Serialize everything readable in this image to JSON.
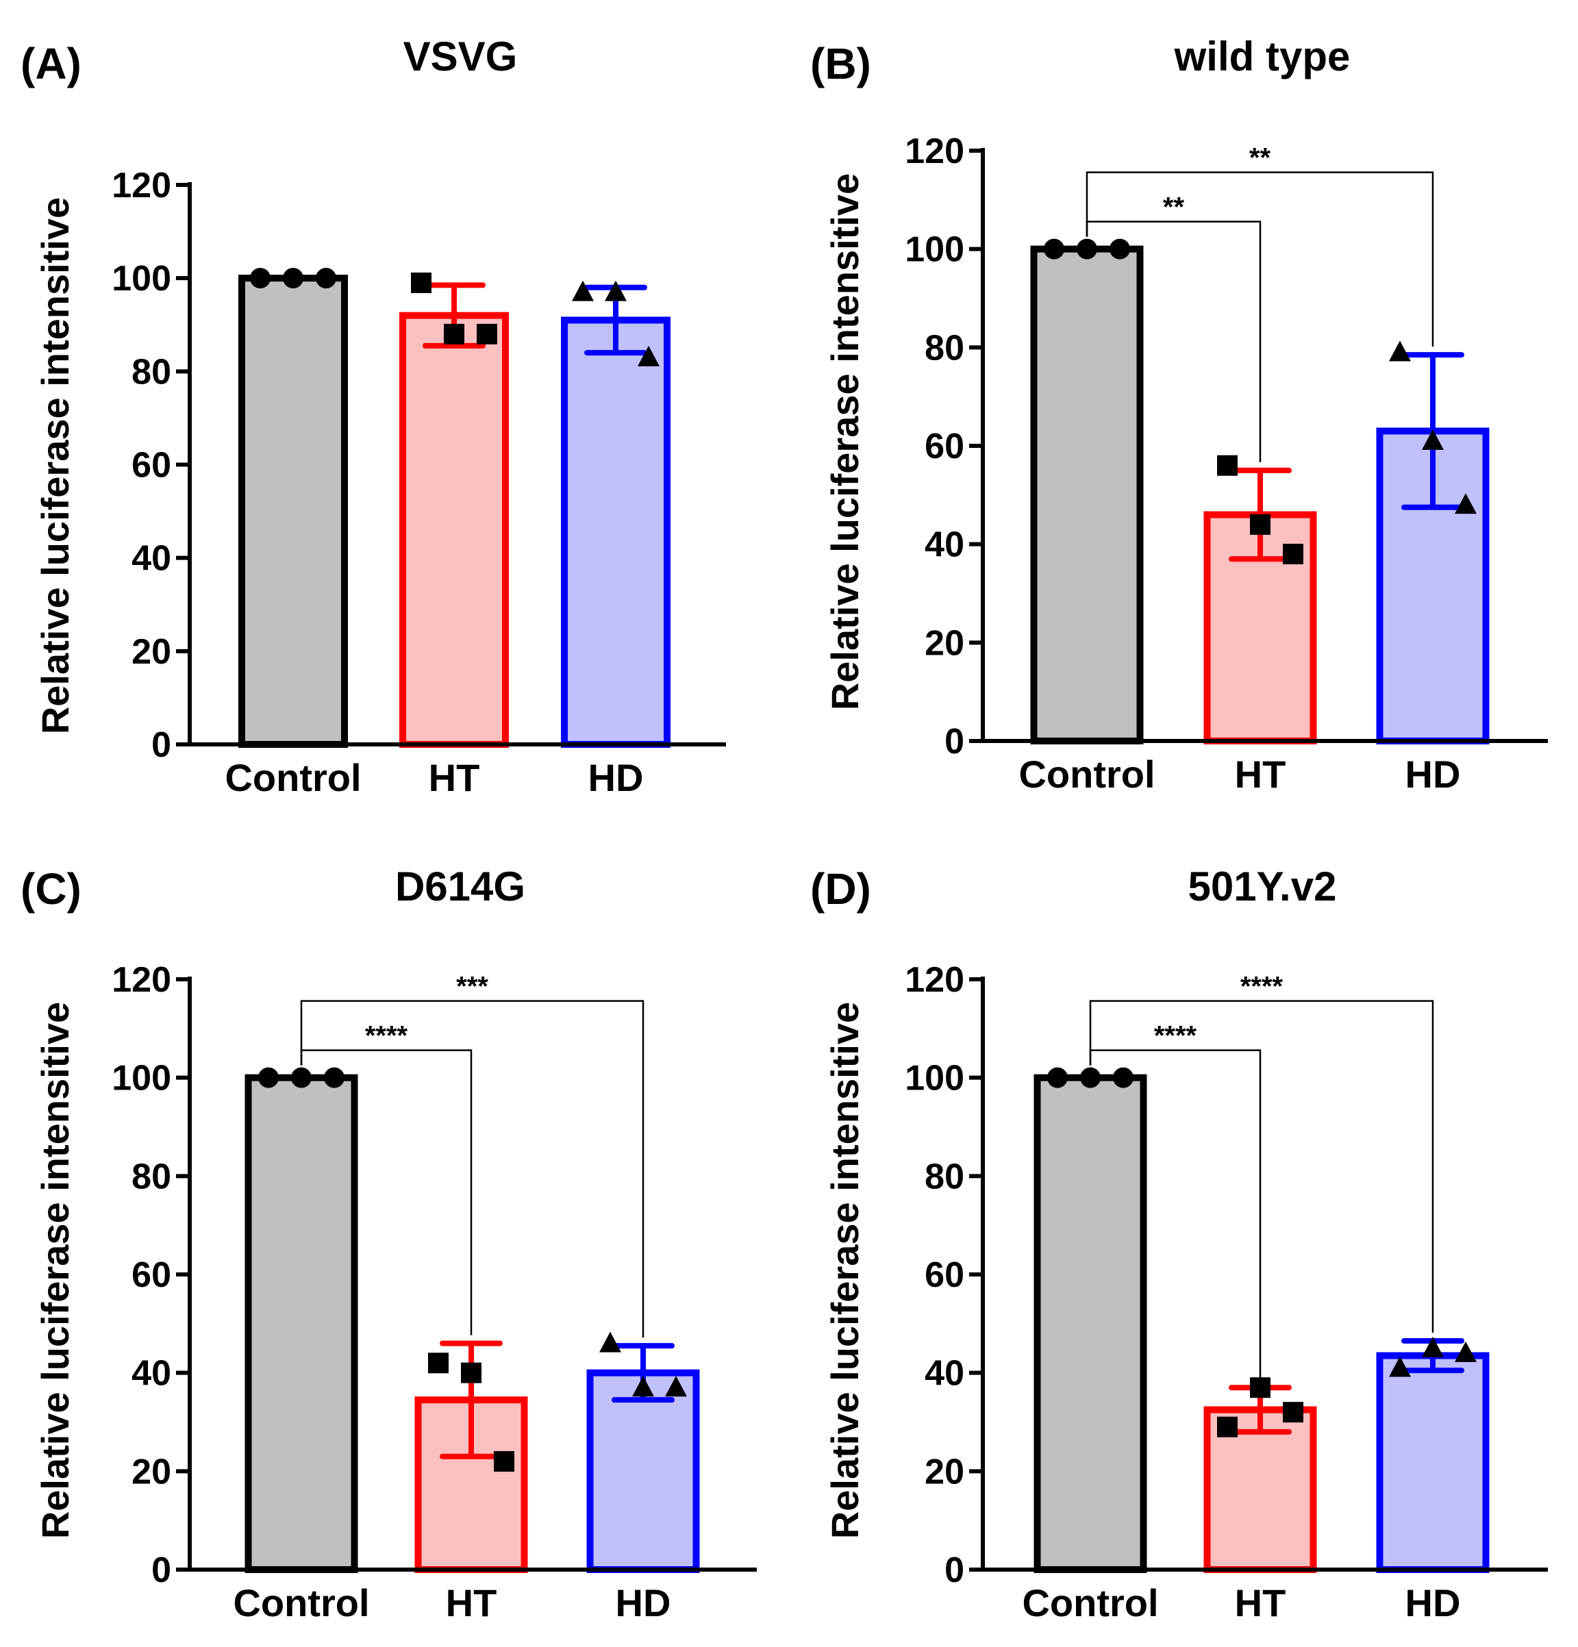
{
  "colors": {
    "control_fill": "#c0c0c0",
    "control_stroke": "#000000",
    "ht_fill": "#fcc0c0",
    "ht_stroke": "#ff0000",
    "hd_fill": "#c0c0fc",
    "hd_stroke": "#0000ff",
    "axis": "#000000"
  },
  "chart_data": [
    {
      "panel": "(A)",
      "title": "VSVG",
      "type": "bar",
      "ylabel": "Relative luciferase intensitive",
      "ylim": [
        0,
        120
      ],
      "yticks": [
        "0",
        "20",
        "40",
        "60",
        "80",
        "100",
        "120"
      ],
      "categories": [
        "Control",
        "HT",
        "HD"
      ],
      "values": [
        100,
        92,
        91
      ],
      "error": [
        0,
        6.5,
        7
      ],
      "points": [
        [
          100,
          100,
          100
        ],
        [
          99,
          88,
          88
        ],
        [
          97,
          97,
          83
        ]
      ],
      "markers": [
        "circle",
        "square",
        "triangle"
      ],
      "significance": []
    },
    {
      "panel": "(B)",
      "title": "wild type",
      "type": "bar",
      "ylabel": "Relative luciferase intensitive",
      "ylim": [
        0,
        120
      ],
      "yticks": [
        "0",
        "20",
        "40",
        "60",
        "80",
        "100",
        "120"
      ],
      "categories": [
        "Control",
        "HT",
        "HD"
      ],
      "values": [
        100,
        46,
        63
      ],
      "error": [
        0,
        9,
        15.5
      ],
      "points": [
        [
          100,
          100,
          100
        ],
        [
          56,
          44,
          38
        ],
        [
          79,
          61,
          48
        ]
      ],
      "markers": [
        "circle",
        "square",
        "triangle"
      ],
      "significance": [
        {
          "from": "Control",
          "to": "HT",
          "label": "**"
        },
        {
          "from": "Control",
          "to": "HD",
          "label": "**"
        }
      ]
    },
    {
      "panel": "(C)",
      "title": "D614G",
      "type": "bar",
      "ylabel": "Relative luciferase intensitive",
      "ylim": [
        0,
        120
      ],
      "yticks": [
        "0",
        "20",
        "40",
        "60",
        "80",
        "100",
        "120"
      ],
      "categories": [
        "Control",
        "HT",
        "HD"
      ],
      "values": [
        100,
        34.5,
        40
      ],
      "error": [
        0,
        11.5,
        5.5
      ],
      "points": [
        [
          100,
          100,
          100
        ],
        [
          42,
          40,
          22
        ],
        [
          46,
          37,
          37
        ]
      ],
      "markers": [
        "circle",
        "square",
        "triangle"
      ],
      "significance": [
        {
          "from": "Control",
          "to": "HT",
          "label": "****"
        },
        {
          "from": "Control",
          "to": "HD",
          "label": "***"
        }
      ]
    },
    {
      "panel": "(D)",
      "title": "501Y.v2",
      "type": "bar",
      "ylabel": "Relative luciferase intensitive",
      "ylim": [
        0,
        120
      ],
      "yticks": [
        "0",
        "20",
        "40",
        "60",
        "80",
        "100",
        "120"
      ],
      "categories": [
        "Control",
        "HT",
        "HD"
      ],
      "values": [
        100,
        32.5,
        43.5
      ],
      "error": [
        0,
        4.5,
        3
      ],
      "points": [
        [
          100,
          100,
          100
        ],
        [
          29,
          37,
          32
        ],
        [
          41,
          45,
          44
        ]
      ],
      "markers": [
        "circle",
        "square",
        "triangle"
      ],
      "significance": [
        {
          "from": "Control",
          "to": "HT",
          "label": "****"
        },
        {
          "from": "Control",
          "to": "HD",
          "label": "****"
        }
      ]
    }
  ]
}
